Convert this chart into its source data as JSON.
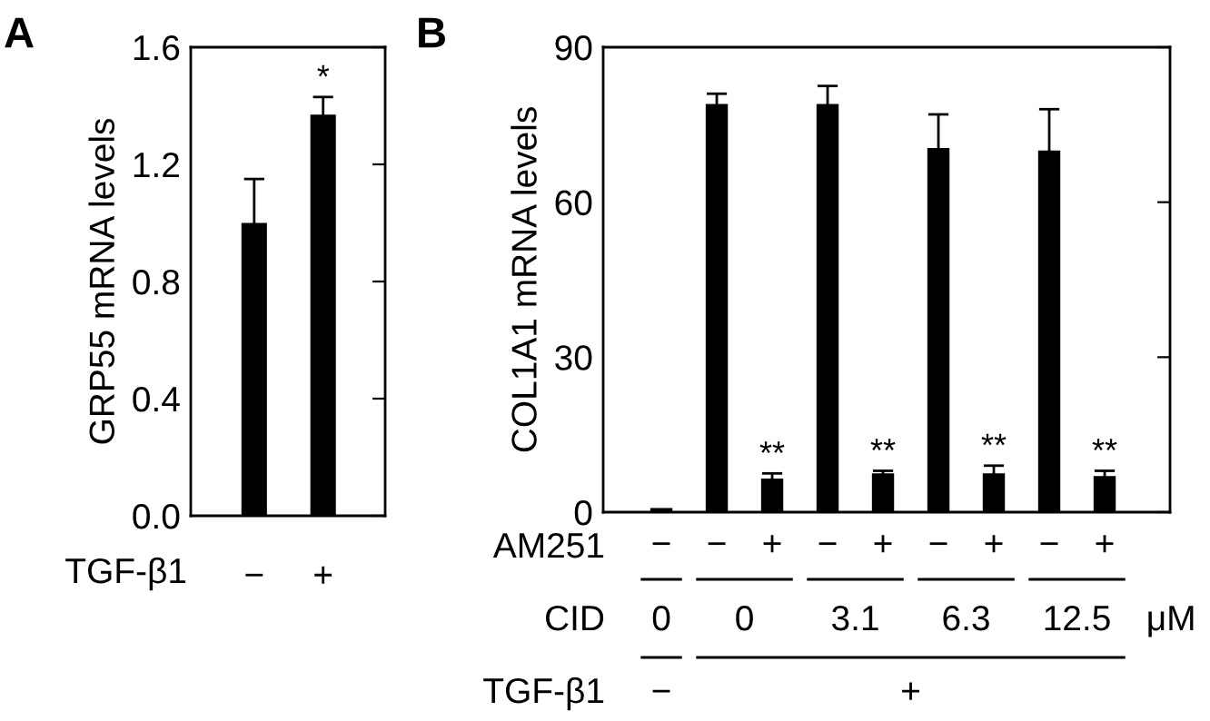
{
  "chart_data": [
    {
      "type": "bar",
      "title": "A",
      "ylabel": "GRP55 mRNA levels",
      "categories": [
        "−",
        "+"
      ],
      "values": [
        1.0,
        1.37
      ],
      "errors": [
        0.15,
        0.06
      ],
      "value_labels": [
        null,
        "*"
      ],
      "color": "#000000",
      "ylim": [
        0,
        1.6
      ],
      "yticks": [
        {
          "value": 0,
          "label": "0.0"
        },
        0.4,
        0.8,
        1.2,
        1.6
      ],
      "annotations": [
        "TGF-β1"
      ]
    },
    {
      "type": "bar",
      "title": "B",
      "ylabel": "COL1A1 mRNA levels",
      "categories": [
        "−",
        "−",
        "+",
        "−",
        "+",
        "−",
        "+",
        "−",
        "+"
      ],
      "values": [
        0.8,
        79,
        6.5,
        79,
        7.5,
        70.5,
        7.5,
        70,
        7
      ],
      "errors": [
        null,
        2,
        1,
        3.5,
        0.5,
        6.5,
        1.5,
        8,
        1
      ],
      "value_labels": [
        null,
        null,
        "**",
        null,
        "**",
        null,
        "**",
        null,
        "**"
      ],
      "color": "#000000",
      "ylim": [
        0,
        90
      ],
      "yticks": [
        0,
        30,
        60,
        90
      ],
      "annotations": [
        "AM251",
        "CID",
        "0",
        "0",
        "3.1",
        "6.3",
        "12.5",
        "μM",
        "TGF-β1",
        "−",
        "+"
      ]
    }
  ]
}
